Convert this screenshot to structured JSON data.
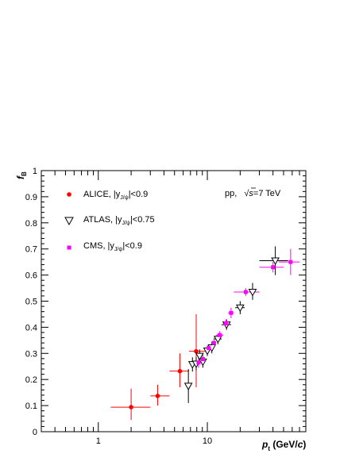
{
  "chart_data": {
    "type": "scatter",
    "title": "",
    "xlabel": "p_t (GeV/c)",
    "xlabel_parts": {
      "sym": "p",
      "sub": "t",
      "unit": " (GeV/",
      "unit_c": "c",
      "unit_end": ")"
    },
    "ylabel": "f_B",
    "ylabel_parts": {
      "sym": "f",
      "sub": "B"
    },
    "xscale": "log",
    "xlim": [
      0.3,
      80
    ],
    "ylim": [
      0,
      1
    ],
    "x_ticks": [
      {
        "value": 1,
        "label": "1"
      },
      {
        "value": 10,
        "label": "10"
      }
    ],
    "y_ticks": [
      {
        "value": 0,
        "label": "0"
      },
      {
        "value": 0.1,
        "label": "0.1"
      },
      {
        "value": 0.2,
        "label": "0.2"
      },
      {
        "value": 0.3,
        "label": "0.3"
      },
      {
        "value": 0.4,
        "label": "0.4"
      },
      {
        "value": 0.5,
        "label": "0.5"
      },
      {
        "value": 0.6,
        "label": "0.6"
      },
      {
        "value": 0.7,
        "label": "0.7"
      },
      {
        "value": 0.8,
        "label": "0.8"
      },
      {
        "value": 0.9,
        "label": "0.9"
      },
      {
        "value": 1,
        "label": "1"
      }
    ],
    "grid": false,
    "annotation": {
      "text_pp": "pp,",
      "text_energy_s": "s",
      "text_energy_rest": "=7 TeV",
      "text_sqrt": "√"
    },
    "legend_position": "top-left",
    "series": [
      {
        "name": "ALICE, |y_J/ψ|<0.9",
        "legend_main": "ALICE, |y",
        "legend_sub": "J/ψ",
        "legend_tail": "|<0.9",
        "marker": "circle",
        "color": "#ff0000",
        "points": [
          {
            "x": 2.0,
            "y": 0.094,
            "xlo": 1.3,
            "xhi": 3.0,
            "ylo": 0.045,
            "yhi": 0.165
          },
          {
            "x": 3.5,
            "y": 0.137,
            "xlo": 3.0,
            "xhi": 4.5,
            "ylo": 0.1,
            "yhi": 0.18
          },
          {
            "x": 5.6,
            "y": 0.232,
            "xlo": 4.5,
            "xhi": 6.8,
            "ylo": 0.17,
            "yhi": 0.3
          },
          {
            "x": 7.9,
            "y": 0.308,
            "xlo": 6.8,
            "xhi": 10.0,
            "ylo": 0.17,
            "yhi": 0.45
          }
        ]
      },
      {
        "name": "ATLAS, |y_J/ψ|<0.75",
        "legend_main": "ATLAS, |y",
        "legend_sub": "J/ψ",
        "legend_tail": "|<0.75",
        "marker": "triangle-down-open",
        "color": "#000000",
        "points": [
          {
            "x": 6.7,
            "y": 0.175,
            "xlo": 6.4,
            "xhi": 7.0,
            "ylo": 0.11,
            "yhi": 0.24
          },
          {
            "x": 7.3,
            "y": 0.258,
            "xlo": 7.0,
            "xhi": 7.6,
            "ylo": 0.23,
            "yhi": 0.285
          },
          {
            "x": 7.9,
            "y": 0.26,
            "xlo": 7.6,
            "xhi": 8.2,
            "ylo": 0.235,
            "yhi": 0.285
          },
          {
            "x": 8.5,
            "y": 0.29,
            "xlo": 8.2,
            "xhi": 8.8,
            "ylo": 0.265,
            "yhi": 0.315
          },
          {
            "x": 9.1,
            "y": 0.268,
            "xlo": 8.8,
            "xhi": 9.5,
            "ylo": 0.245,
            "yhi": 0.29
          },
          {
            "x": 10.0,
            "y": 0.31,
            "xlo": 9.5,
            "xhi": 10.5,
            "ylo": 0.29,
            "yhi": 0.33
          },
          {
            "x": 11.0,
            "y": 0.322,
            "xlo": 10.5,
            "xhi": 11.5,
            "ylo": 0.3,
            "yhi": 0.345
          },
          {
            "x": 12.5,
            "y": 0.355,
            "xlo": 11.5,
            "xhi": 13.5,
            "ylo": 0.335,
            "yhi": 0.375
          },
          {
            "x": 15.0,
            "y": 0.41,
            "xlo": 13.5,
            "xhi": 16.5,
            "ylo": 0.39,
            "yhi": 0.43
          },
          {
            "x": 20.0,
            "y": 0.475,
            "xlo": 18.0,
            "xhi": 22.0,
            "ylo": 0.45,
            "yhi": 0.5
          },
          {
            "x": 26.0,
            "y": 0.535,
            "xlo": 22.0,
            "xhi": 30.0,
            "ylo": 0.505,
            "yhi": 0.57
          },
          {
            "x": 42.0,
            "y": 0.655,
            "xlo": 30.0,
            "xhi": 55.0,
            "ylo": 0.6,
            "yhi": 0.71
          }
        ]
      },
      {
        "name": "CMS, |y_J/ψ|<0.9",
        "legend_main": "CMS, |y",
        "legend_sub": "J/ψ",
        "legend_tail": "|<0.9",
        "marker": "square",
        "color": "#ff00ff",
        "points": [
          {
            "x": 8.3,
            "y": 0.265,
            "xlo": 8.0,
            "xhi": 8.7,
            "ylo": 0.245,
            "yhi": 0.29
          },
          {
            "x": 9.1,
            "y": 0.278,
            "xlo": 8.7,
            "xhi": 9.5,
            "ylo": 0.26,
            "yhi": 0.3
          },
          {
            "x": 10.3,
            "y": 0.32,
            "xlo": 9.5,
            "xhi": 11.0,
            "ylo": 0.305,
            "yhi": 0.335
          },
          {
            "x": 11.5,
            "y": 0.34,
            "xlo": 11.0,
            "xhi": 12.0,
            "ylo": 0.325,
            "yhi": 0.36
          },
          {
            "x": 13.0,
            "y": 0.37,
            "xlo": 12.0,
            "xhi": 14.0,
            "ylo": 0.355,
            "yhi": 0.385
          },
          {
            "x": 14.8,
            "y": 0.415,
            "xlo": 14.0,
            "xhi": 15.5,
            "ylo": 0.4,
            "yhi": 0.43
          },
          {
            "x": 16.5,
            "y": 0.455,
            "xlo": 15.5,
            "xhi": 17.5,
            "ylo": 0.435,
            "yhi": 0.475
          },
          {
            "x": 22.5,
            "y": 0.535,
            "xlo": 17.5,
            "xhi": 30.0,
            "ylo": 0.52,
            "yhi": 0.55
          },
          {
            "x": 40.0,
            "y": 0.63,
            "xlo": 30.0,
            "xhi": 50.0,
            "ylo": 0.61,
            "yhi": 0.65
          },
          {
            "x": 58.0,
            "y": 0.65,
            "xlo": 45.0,
            "xhi": 70.0,
            "ylo": 0.6,
            "yhi": 0.7
          }
        ]
      }
    ]
  }
}
